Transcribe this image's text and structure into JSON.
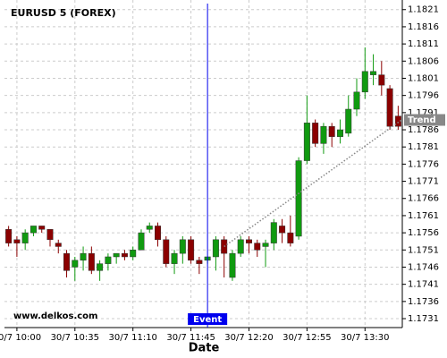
{
  "chart_data": {
    "type": "candlestick",
    "title": "EURUSD 5 (FOREX)",
    "x_label": "Date",
    "watermark": "www.delkos.com",
    "categories": [
      null,
      "30/7 10:00",
      null,
      null,
      null,
      null,
      null,
      null,
      "30/7 10:35",
      null,
      null,
      null,
      null,
      null,
      null,
      "30/7 11:10",
      null,
      null,
      null,
      null,
      null,
      null,
      "30/7 11:45",
      null,
      null,
      null,
      null,
      null,
      null,
      "30/7 12:20",
      null,
      null,
      null,
      null,
      null,
      null,
      "30/7 12:55",
      null,
      null,
      null,
      null,
      null,
      null,
      "30/7 13:30",
      null,
      null,
      null,
      null
    ],
    "open": [
      1.1757,
      1.1754,
      1.1753,
      1.1756,
      1.1758,
      1.1757,
      1.1753,
      1.175,
      1.1746,
      1.1748,
      1.175,
      1.1745,
      1.1747,
      1.1749,
      1.175,
      1.1749,
      1.1751,
      1.1757,
      1.1758,
      1.1754,
      1.1747,
      1.175,
      1.1754,
      1.1748,
      1.1748,
      1.1749,
      1.1754,
      1.1743,
      1.175,
      1.1754,
      1.1753,
      1.1752,
      1.1753,
      1.1758,
      1.1756,
      1.1755,
      1.1777,
      1.1788,
      1.1782,
      1.1787,
      1.1784,
      1.1785,
      1.1792,
      1.1797,
      1.1802,
      1.1802,
      1.1798,
      1.179
    ],
    "high": [
      1.1758,
      1.1755,
      1.1757,
      1.1758,
      1.1758,
      1.1757,
      1.1754,
      1.1751,
      1.1749,
      1.1752,
      1.1752,
      1.1748,
      1.175,
      1.175,
      1.1751,
      1.1752,
      1.1757,
      1.1759,
      1.1759,
      1.1755,
      1.1751,
      1.1755,
      1.1755,
      1.1749,
      1.1749,
      1.1755,
      1.1755,
      1.1751,
      1.1755,
      1.1755,
      1.1754,
      1.1754,
      1.176,
      1.176,
      1.1761,
      1.1778,
      1.1796,
      1.1789,
      1.1788,
      1.1788,
      1.1789,
      1.1796,
      1.1801,
      1.181,
      1.1808,
      1.1806,
      1.1799,
      1.1793
    ],
    "low": [
      1.1752,
      1.1749,
      1.1751,
      1.1755,
      1.1756,
      1.1752,
      1.175,
      1.1743,
      1.1742,
      1.1745,
      1.1744,
      1.1742,
      1.1745,
      1.1747,
      1.1748,
      1.1748,
      1.1751,
      1.1756,
      1.1752,
      1.1746,
      1.1744,
      1.1747,
      1.1747,
      1.1744,
      1.1747,
      1.1745,
      1.1743,
      1.1742,
      1.1749,
      1.175,
      1.1749,
      1.1746,
      1.1751,
      1.1753,
      1.1752,
      1.1754,
      1.1776,
      1.1781,
      1.1779,
      1.1781,
      1.1782,
      1.1784,
      1.179,
      1.1795,
      1.1799,
      1.1796,
      1.1786,
      1.1786
    ],
    "close": [
      1.1753,
      1.1753,
      1.1756,
      1.1758,
      1.1757,
      1.1754,
      1.1752,
      1.1745,
      1.1748,
      1.175,
      1.1745,
      1.1747,
      1.1749,
      1.175,
      1.1749,
      1.1751,
      1.1756,
      1.1758,
      1.1754,
      1.1747,
      1.175,
      1.1754,
      1.1748,
      1.1747,
      1.1749,
      1.1754,
      1.175,
      1.175,
      1.1754,
      1.1753,
      1.1751,
      1.1753,
      1.1759,
      1.1756,
      1.1753,
      1.1777,
      1.1788,
      1.1782,
      1.1787,
      1.1784,
      1.1786,
      1.1792,
      1.1797,
      1.1803,
      1.1803,
      1.1799,
      1.1787,
      1.1787
    ],
    "up_color": "#109a10",
    "down_color": "#8b0000",
    "ylim": [
      1.17284,
      1.18238
    ],
    "yticks": [
      1.1731,
      1.1736,
      1.1741,
      1.1746,
      1.1751,
      1.1756,
      1.1761,
      1.1766,
      1.1771,
      1.1776,
      1.1781,
      1.1786,
      1.1791,
      1.1796,
      1.1801,
      1.1806,
      1.1811,
      1.1816,
      1.1821
    ],
    "grid": true,
    "event": {
      "label": "Event",
      "index": 24,
      "color": "#0000ee"
    },
    "trend": {
      "label": "Trend",
      "start": {
        "index": 26,
        "value": 1.1752
      },
      "end": {
        "index": 47,
        "value": 1.1789
      }
    }
  }
}
